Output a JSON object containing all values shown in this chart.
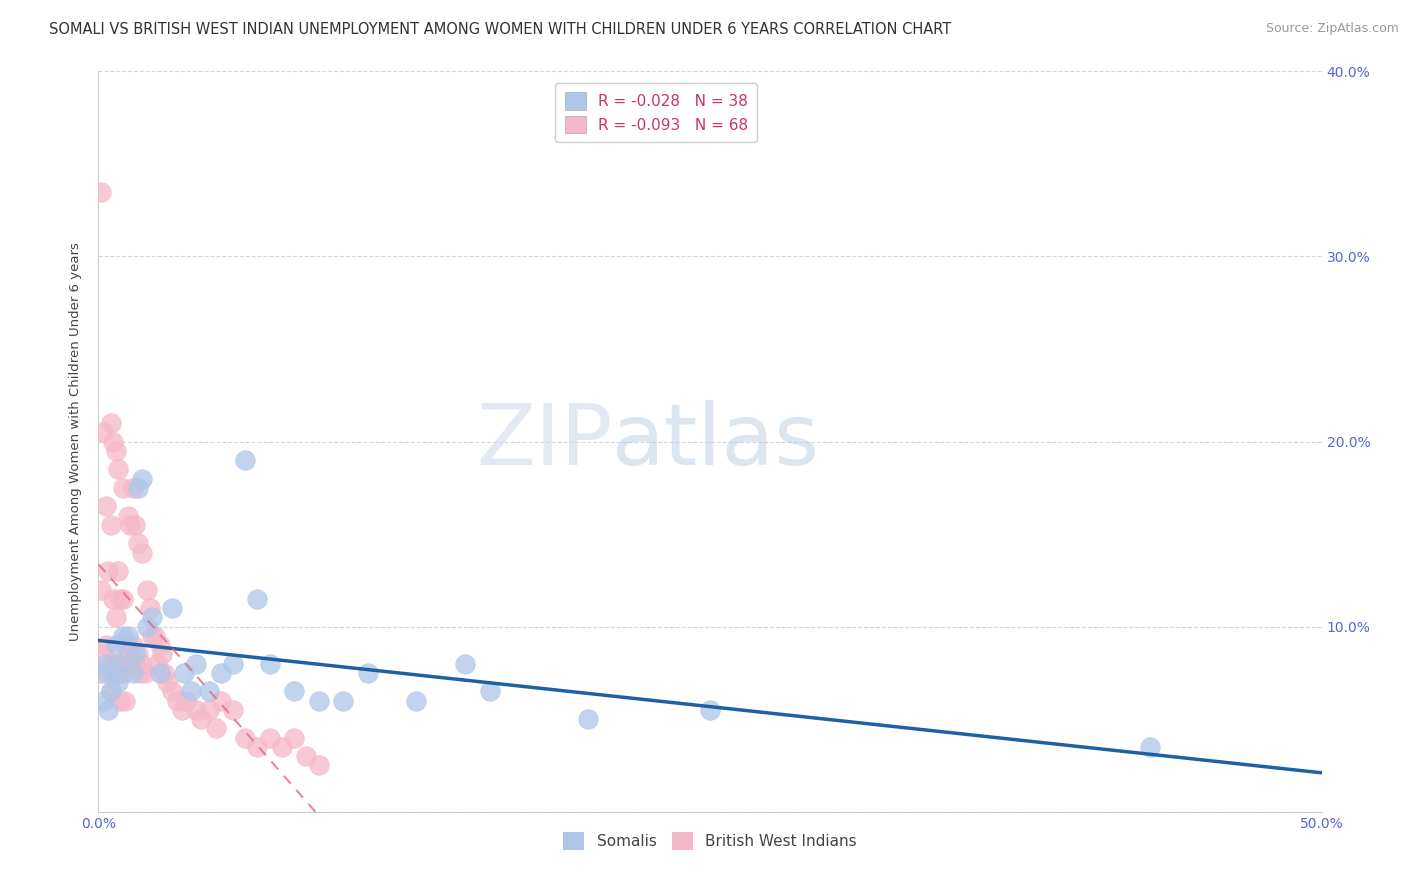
{
  "title": "SOMALI VS BRITISH WEST INDIAN UNEMPLOYMENT AMONG WOMEN WITH CHILDREN UNDER 6 YEARS CORRELATION CHART",
  "source": "Source: ZipAtlas.com",
  "ylabel": "Unemployment Among Women with Children Under 6 years",
  "xlim": [
    0.0,
    0.5
  ],
  "ylim": [
    0.0,
    0.4
  ],
  "xticks": [
    0.0,
    0.05,
    0.1,
    0.15,
    0.2,
    0.25,
    0.3,
    0.35,
    0.4,
    0.45,
    0.5
  ],
  "xticklabels": [
    "0.0%",
    "",
    "",
    "",
    "",
    "",
    "",
    "",
    "",
    "",
    "50.0%"
  ],
  "yticks": [
    0.0,
    0.1,
    0.2,
    0.3,
    0.4
  ],
  "yticklabels_right": [
    "",
    "10.0%",
    "20.0%",
    "30.0%",
    "40.0%"
  ],
  "somali_R": "-0.028",
  "somali_N": "38",
  "bwi_R": "-0.093",
  "bwi_N": "68",
  "somali_color": "#aec6e8",
  "bwi_color": "#f5b8c8",
  "somali_line_color": "#1f5fa6",
  "bwi_line_color": "#e07090",
  "grid_color": "#cccccc",
  "watermark_zip": "ZIP",
  "watermark_atlas": "atlas",
  "background_color": "#ffffff",
  "title_fontsize": 10.5,
  "axis_label_fontsize": 9.5,
  "tick_fontsize": 10,
  "legend_fontsize": 11,
  "source_fontsize": 9,
  "somali_x": [
    0.001,
    0.002,
    0.003,
    0.004,
    0.005,
    0.006,
    0.007,
    0.008,
    0.009,
    0.01,
    0.012,
    0.014,
    0.015,
    0.016,
    0.018,
    0.02,
    0.022,
    0.025,
    0.03,
    0.035,
    0.038,
    0.04,
    0.045,
    0.05,
    0.055,
    0.06,
    0.065,
    0.07,
    0.08,
    0.09,
    0.1,
    0.11,
    0.13,
    0.15,
    0.16,
    0.2,
    0.25,
    0.43
  ],
  "somali_y": [
    0.075,
    0.06,
    0.08,
    0.055,
    0.065,
    0.075,
    0.09,
    0.07,
    0.08,
    0.095,
    0.095,
    0.075,
    0.085,
    0.175,
    0.18,
    0.1,
    0.105,
    0.075,
    0.11,
    0.075,
    0.065,
    0.08,
    0.065,
    0.075,
    0.08,
    0.19,
    0.115,
    0.08,
    0.065,
    0.06,
    0.06,
    0.075,
    0.06,
    0.08,
    0.065,
    0.05,
    0.055,
    0.035
  ],
  "bwi_x": [
    0.001,
    0.001,
    0.002,
    0.002,
    0.003,
    0.003,
    0.004,
    0.004,
    0.005,
    0.005,
    0.005,
    0.006,
    0.006,
    0.006,
    0.007,
    0.007,
    0.007,
    0.008,
    0.008,
    0.008,
    0.009,
    0.009,
    0.009,
    0.01,
    0.01,
    0.01,
    0.011,
    0.011,
    0.012,
    0.012,
    0.013,
    0.013,
    0.014,
    0.014,
    0.015,
    0.015,
    0.016,
    0.016,
    0.017,
    0.018,
    0.018,
    0.019,
    0.02,
    0.021,
    0.022,
    0.023,
    0.024,
    0.025,
    0.026,
    0.027,
    0.028,
    0.03,
    0.032,
    0.034,
    0.036,
    0.04,
    0.042,
    0.045,
    0.048,
    0.05,
    0.055,
    0.06,
    0.065,
    0.07,
    0.075,
    0.08,
    0.085,
    0.09
  ],
  "bwi_y": [
    0.335,
    0.12,
    0.205,
    0.085,
    0.09,
    0.165,
    0.075,
    0.13,
    0.155,
    0.21,
    0.065,
    0.2,
    0.115,
    0.08,
    0.195,
    0.105,
    0.08,
    0.185,
    0.13,
    0.075,
    0.115,
    0.075,
    0.06,
    0.175,
    0.115,
    0.075,
    0.09,
    0.06,
    0.16,
    0.085,
    0.155,
    0.08,
    0.175,
    0.09,
    0.155,
    0.08,
    0.145,
    0.085,
    0.075,
    0.14,
    0.08,
    0.075,
    0.12,
    0.11,
    0.095,
    0.095,
    0.08,
    0.09,
    0.085,
    0.075,
    0.07,
    0.065,
    0.06,
    0.055,
    0.06,
    0.055,
    0.05,
    0.055,
    0.045,
    0.06,
    0.055,
    0.04,
    0.035,
    0.04,
    0.035,
    0.04,
    0.03,
    0.025
  ]
}
